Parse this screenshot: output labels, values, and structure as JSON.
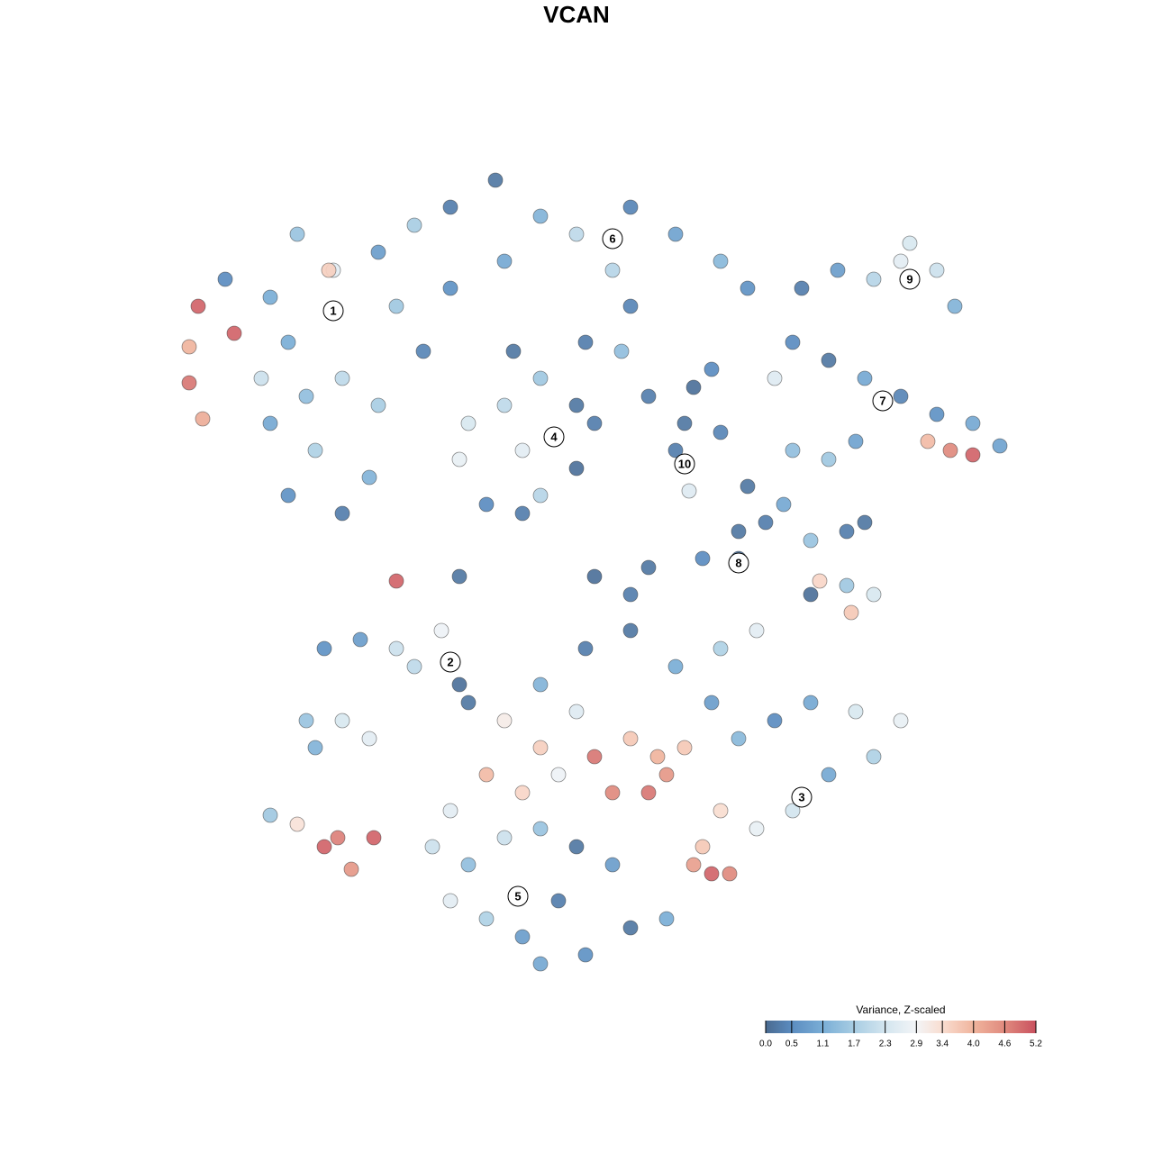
{
  "chart_data": {
    "type": "scatter",
    "title": "VCAN",
    "xlim": [
      -10,
      10
    ],
    "ylim": [
      -10,
      10
    ],
    "x": [
      -8.3,
      -7.3,
      -6.7,
      -5.9,
      -4.9,
      -4.1,
      -3.3,
      -2.3,
      -1.3,
      -0.5,
      0.7,
      1.7,
      2.7,
      3.3,
      0.3,
      -2.1,
      -3.3,
      -4.5,
      -6.9,
      -7.5,
      -6.5,
      -5.7,
      -7.3,
      -6.3,
      -6.9,
      -5.7,
      -5.1,
      -8.9,
      -9.1,
      -9.1,
      -8.8,
      -8.1,
      -6.0,
      -3.9,
      -4.9,
      -2.9,
      -2.1,
      -1.3,
      -0.5,
      -1.7,
      -3.1,
      -2.5,
      -1.3,
      -0.5,
      -1.7,
      -0.1,
      -1.9,
      -0.3,
      0.7,
      0.5,
      1.1,
      1.9,
      2.1,
      2.5,
      1.7,
      2.0,
      2.7,
      3.3,
      3.7,
      3.1,
      4.1,
      4.5,
      5.3,
      6.1,
      6.9,
      7.5,
      7.9,
      6.7,
      4.3,
      5.1,
      5.9,
      6.7,
      7.5,
      8.3,
      8.9,
      7.3,
      7.8,
      8.3,
      6.3,
      4.3,
      5.1,
      5.7,
      3.9,
      4.7,
      5.5,
      5.9,
      4.7,
      5.5,
      6.1,
      4.9,
      5.6,
      3.1,
      2.3,
      1.1,
      0.7,
      -0.1,
      -4.5,
      -3.1,
      -6.1,
      -5.3,
      -4.5,
      -3.5,
      -4.1,
      -3.1,
      -2.9,
      -6.5,
      -5.7,
      -5.1,
      -6.3,
      -7.3,
      -6.7,
      -6.1,
      -5.8,
      -5.5,
      -5.0,
      -2.1,
      -1.3,
      -2.5,
      -1.7,
      -0.9,
      -0.1,
      0.7,
      1.3,
      1.9,
      1.5,
      0.3,
      1.1,
      -0.5,
      -1.3,
      -0.3,
      0.7,
      1.7,
      2.7,
      3.5,
      2.5,
      3.1,
      3.9,
      4.7,
      5.7,
      6.7,
      6.1,
      5.1,
      4.3,
      3.5,
      2.7,
      2.3,
      2.5,
      2.9,
      2.1,
      -3.3,
      -3.7,
      -2.9,
      -3.3,
      -2.5,
      -1.7,
      -0.9,
      -0.3,
      0.7,
      1.5,
      0.3,
      -0.5,
      -1.3,
      -2.1,
      -1.3
    ],
    "y": [
      6.6,
      6.2,
      7.6,
      6.8,
      7.2,
      7.8,
      8.2,
      8.8,
      8.0,
      7.6,
      8.2,
      7.6,
      7.0,
      6.4,
      6.8,
      7.0,
      6.4,
      6.0,
      5.2,
      4.4,
      4.0,
      4.4,
      3.4,
      2.8,
      1.8,
      1.4,
      2.2,
      6.0,
      5.1,
      4.3,
      3.5,
      5.4,
      6.8,
      5.0,
      3.8,
      3.4,
      3.8,
      4.4,
      3.8,
      2.8,
      2.6,
      1.6,
      1.8,
      2.4,
      1.4,
      3.4,
      5.0,
      5.2,
      6.0,
      5.0,
      4.0,
      3.4,
      4.2,
      4.6,
      2.8,
      1.9,
      3.2,
      2.0,
      1.2,
      1.0,
      1.6,
      6.4,
      6.8,
      6.6,
      7.4,
      6.8,
      6.0,
      7.0,
      5.2,
      4.8,
      4.4,
      4.0,
      3.6,
      3.4,
      2.9,
      3.0,
      2.8,
      2.7,
      3.9,
      2.8,
      2.6,
      3.0,
      4.4,
      0.8,
      1.0,
      1.2,
      -0.4,
      -0.2,
      -0.4,
      -0.1,
      -0.8,
      0.4,
      0.4,
      0.2,
      -0.4,
      0.0,
      -0.1,
      0.0,
      -1.6,
      -1.4,
      -1.6,
      -1.2,
      -2.0,
      -2.4,
      -2.8,
      -3.2,
      -3.2,
      -3.6,
      -3.8,
      -5.3,
      -5.5,
      -6.0,
      -5.8,
      -6.5,
      -5.8,
      -3.2,
      -3.8,
      -4.4,
      -4.8,
      -4.4,
      -4.0,
      -3.6,
      -4.0,
      -3.8,
      -4.4,
      -4.8,
      -4.8,
      -3.0,
      -2.4,
      -1.6,
      -1.2,
      -2.0,
      -1.6,
      -1.2,
      -2.8,
      -3.6,
      -3.2,
      -2.8,
      -3.0,
      -3.2,
      -4.0,
      -4.4,
      -5.2,
      -5.6,
      -5.2,
      -6.0,
      -6.6,
      -6.6,
      -6.4,
      -5.2,
      -6.0,
      -6.4,
      -7.2,
      -7.6,
      -8.0,
      -7.2,
      -8.4,
      -7.8,
      -7.6,
      -6.4,
      -6.0,
      -5.6,
      -5.8,
      -8.6
    ],
    "values": [
      0.5,
      1.1,
      1.5,
      2.6,
      0.8,
      1.7,
      0.3,
      0.2,
      1.2,
      2.0,
      0.4,
      0.9,
      1.3,
      0.6,
      1.9,
      1.0,
      0.6,
      1.6,
      1.1,
      2.2,
      1.4,
      2.0,
      1.0,
      1.8,
      0.6,
      0.3,
      1.2,
      5.0,
      4.0,
      4.8,
      4.1,
      5.0,
      3.6,
      0.4,
      1.7,
      2.4,
      2.0,
      1.6,
      0.2,
      2.6,
      2.7,
      0.5,
      1.9,
      0.1,
      0.3,
      0.3,
      0.2,
      0.3,
      0.4,
      1.4,
      0.3,
      0.2,
      0.1,
      0.5,
      0.3,
      2.5,
      0.4,
      0.2,
      0.3,
      0.2,
      1.0,
      0.3,
      0.8,
      1.9,
      2.4,
      2.2,
      1.2,
      2.6,
      0.5,
      0.2,
      1.0,
      0.4,
      0.6,
      1.0,
      0.9,
      3.9,
      4.6,
      5.0,
      2.8,
      1.4,
      1.6,
      0.9,
      2.5,
      1.5,
      0.3,
      0.2,
      0.1,
      1.6,
      2.4,
      3.5,
      3.7,
      0.2,
      0.5,
      0.2,
      0.3,
      0.1,
      5.0,
      0.2,
      0.6,
      0.8,
      2.2,
      2.8,
      2.0,
      0.1,
      0.2,
      1.5,
      2.4,
      2.6,
      1.2,
      1.6,
      3.3,
      5.0,
      4.7,
      4.4,
      5.0,
      3.1,
      3.6,
      3.9,
      3.5,
      2.8,
      4.8,
      3.7,
      4.0,
      3.7,
      4.4,
      4.6,
      4.8,
      2.5,
      1.2,
      0.3,
      0.2,
      1.1,
      1.8,
      2.6,
      0.8,
      1.3,
      0.5,
      1.0,
      2.4,
      2.7,
      1.8,
      1.0,
      2.3,
      2.7,
      3.4,
      3.7,
      5.0,
      4.6,
      4.3,
      2.6,
      2.2,
      1.4,
      2.6,
      1.8,
      0.8,
      0.3,
      0.6,
      0.2,
      1.1,
      0.8,
      0.2,
      1.5,
      2.2,
      1.0
    ],
    "clusters": [
      {
        "label": "1",
        "x": -5.9,
        "y": 5.9
      },
      {
        "label": "2",
        "x": -3.3,
        "y": -1.9
      },
      {
        "label": "3",
        "x": 4.5,
        "y": -4.9
      },
      {
        "label": "4",
        "x": -1.0,
        "y": 3.1
      },
      {
        "label": "5",
        "x": -1.8,
        "y": -7.1
      },
      {
        "label": "6",
        "x": 0.3,
        "y": 7.5
      },
      {
        "label": "7",
        "x": 6.3,
        "y": 3.9
      },
      {
        "label": "8",
        "x": 3.1,
        "y": 0.3
      },
      {
        "label": "9",
        "x": 6.9,
        "y": 6.6
      },
      {
        "label": "10",
        "x": 1.9,
        "y": 2.5
      }
    ],
    "colorbar": {
      "title": "Variance, Z-scaled",
      "clim": [
        0,
        5.2
      ],
      "ticks": [
        {
          "value": 0,
          "label": "0.0"
        },
        0.5,
        1.1,
        1.7,
        2.3,
        2.9,
        3.4,
        {
          "value": 4,
          "label": "4.0"
        },
        4.6,
        5.2
      ],
      "colors": [
        "#4a6a90",
        "#5b8cc0",
        "#7aaed6",
        "#a8cde3",
        "#d3e5ef",
        "#f3f5f7",
        "#f9ddd0",
        "#f0b49d",
        "#e08a7e",
        "#c9515f"
      ]
    }
  }
}
